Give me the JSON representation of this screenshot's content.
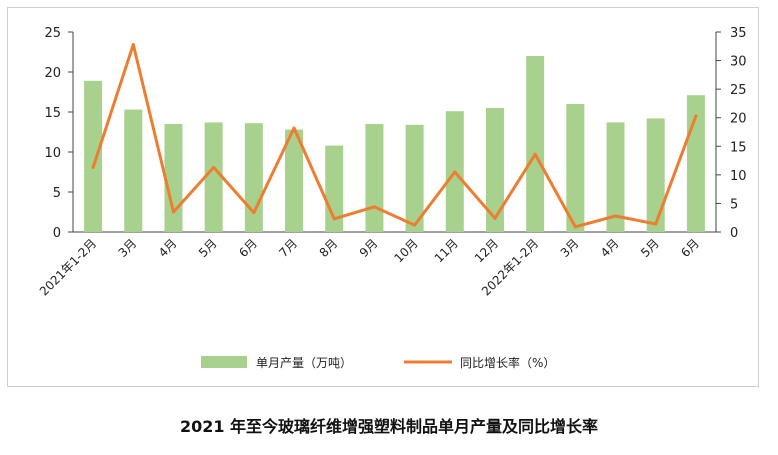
{
  "chart_data": {
    "type": "bar+line",
    "title": "2021 年至今玻璃纤维增强塑料制品单月产量及同比增长率",
    "categories": [
      "2021年1-2月",
      "3月",
      "4月",
      "5月",
      "6月",
      "7月",
      "8月",
      "9月",
      "10月",
      "11月",
      "12月",
      "2022年1-2月",
      "3月",
      "4月",
      "5月",
      "6月"
    ],
    "series": [
      {
        "name": "单月产量（万吨）",
        "type": "bar",
        "axis": "left",
        "color": "#a9d18e",
        "values": [
          18.9,
          15.3,
          13.5,
          13.7,
          13.6,
          12.8,
          10.8,
          13.5,
          13.4,
          15.1,
          15.5,
          22.0,
          16.0,
          13.7,
          14.2,
          17.1
        ]
      },
      {
        "name": "同比增长率（%）",
        "type": "line",
        "axis": "right",
        "color": "#ed7d31",
        "values": [
          11.3,
          32.8,
          3.5,
          11.3,
          3.4,
          18.2,
          2.3,
          4.4,
          1.2,
          10.5,
          2.4,
          13.6,
          0.9,
          2.8,
          1.4,
          20.3
        ]
      }
    ],
    "y_left": {
      "min": 0,
      "max": 25,
      "ticks": [
        0,
        5,
        10,
        15,
        20,
        25
      ]
    },
    "y_right": {
      "min": 0,
      "max": 35,
      "ticks": [
        0,
        5,
        10,
        15,
        20,
        25,
        30,
        35
      ]
    },
    "legend_position": "bottom",
    "grid": false
  }
}
